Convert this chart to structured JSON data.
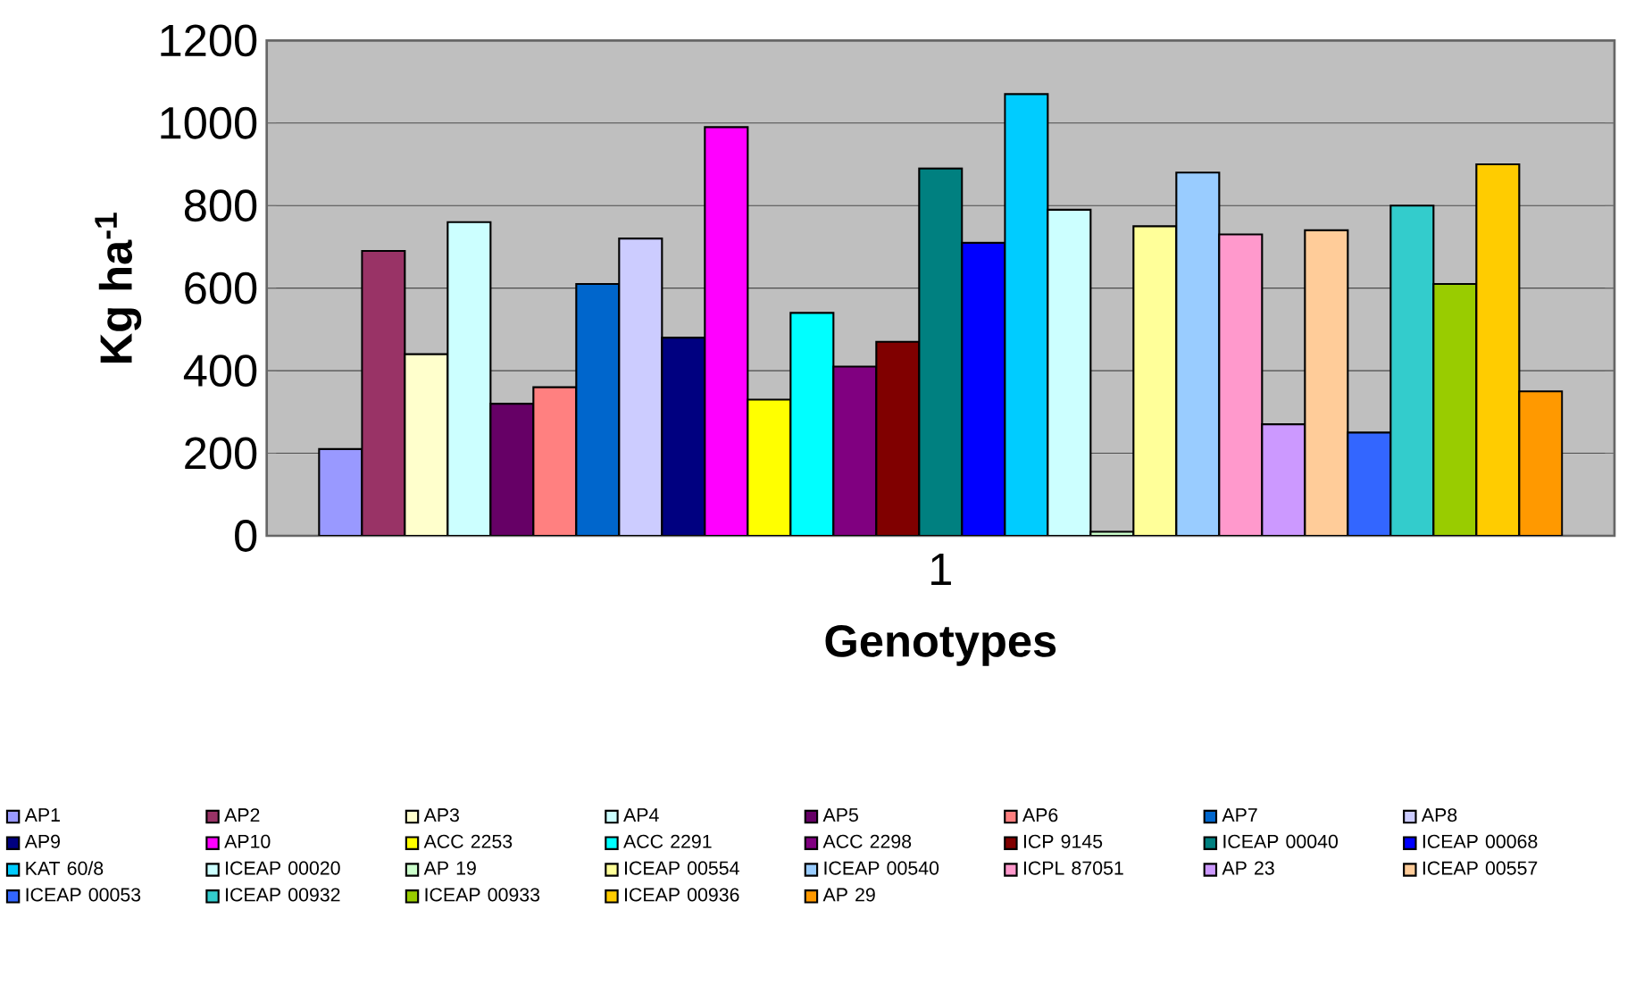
{
  "chart_data": {
    "type": "bar",
    "xlabel": "Genotypes",
    "ylabel": "Kg ha$^{-1}$",
    "categories": [
      "1"
    ],
    "ylim": [
      0,
      1200
    ],
    "yticks": [
      0,
      200,
      400,
      600,
      800,
      1000,
      1200
    ],
    "grid": "y",
    "legend": "bottom",
    "series": [
      {
        "name": "AP1",
        "color": "#9999ff",
        "values": [
          210
        ]
      },
      {
        "name": "AP2",
        "color": "#993366",
        "values": [
          690
        ]
      },
      {
        "name": "AP3",
        "color": "#ffffcc",
        "values": [
          440
        ]
      },
      {
        "name": "AP4",
        "color": "#ccffff",
        "values": [
          760
        ]
      },
      {
        "name": "AP5",
        "color": "#660066",
        "values": [
          320
        ]
      },
      {
        "name": "AP6",
        "color": "#ff8080",
        "values": [
          360
        ]
      },
      {
        "name": "AP7",
        "color": "#0066cc",
        "values": [
          610
        ]
      },
      {
        "name": "AP8",
        "color": "#ccccff",
        "values": [
          720
        ]
      },
      {
        "name": "AP9",
        "color": "#000080",
        "values": [
          480
        ]
      },
      {
        "name": "AP10",
        "color": "#ff00ff",
        "values": [
          990
        ]
      },
      {
        "name": "ACC 2253",
        "color": "#ffff00",
        "values": [
          330
        ]
      },
      {
        "name": "ACC 2291",
        "color": "#00ffff",
        "values": [
          540
        ]
      },
      {
        "name": "ACC 2298",
        "color": "#800080",
        "values": [
          410
        ]
      },
      {
        "name": "ICP 9145",
        "color": "#800000",
        "values": [
          470
        ]
      },
      {
        "name": "ICEAP 00040",
        "color": "#008080",
        "values": [
          890
        ]
      },
      {
        "name": "ICEAP 00068",
        "color": "#0000ff",
        "values": [
          710
        ]
      },
      {
        "name": "KAT 60/8",
        "color": "#00ccff",
        "values": [
          1070
        ]
      },
      {
        "name": "ICEAP 00020",
        "color": "#ccffff",
        "values": [
          790
        ]
      },
      {
        "name": "AP 19",
        "color": "#ccffcc",
        "values": [
          10
        ]
      },
      {
        "name": "ICEAP 00554",
        "color": "#ffff99",
        "values": [
          750
        ]
      },
      {
        "name": "ICEAP 00540",
        "color": "#99ccff",
        "values": [
          880
        ]
      },
      {
        "name": "ICPL 87051",
        "color": "#ff99cc",
        "values": [
          730
        ]
      },
      {
        "name": "AP 23",
        "color": "#cc99ff",
        "values": [
          270
        ]
      },
      {
        "name": "ICEAP 00557",
        "color": "#ffcc99",
        "values": [
          740
        ]
      },
      {
        "name": "ICEAP 00053",
        "color": "#3366ff",
        "values": [
          250
        ]
      },
      {
        "name": "ICEAP 00932",
        "color": "#33cccc",
        "values": [
          800
        ]
      },
      {
        "name": "ICEAP 00933",
        "color": "#99cc00",
        "values": [
          610
        ]
      },
      {
        "name": "ICEAP 00936",
        "color": "#ffcc00",
        "values": [
          900
        ]
      },
      {
        "name": "AP 29",
        "color": "#ff9900",
        "values": [
          350
        ]
      }
    ]
  }
}
